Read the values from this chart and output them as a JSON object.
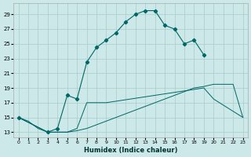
{
  "xlabel": "Humidex (Indice chaleur)",
  "bg_color": "#cce8e8",
  "grid_color": "#aacccc",
  "line_color": "#006666",
  "xlim": [
    -0.5,
    23.5
  ],
  "ylim": [
    12.3,
    30.5
  ],
  "yticks": [
    13,
    15,
    17,
    19,
    21,
    23,
    25,
    27,
    29
  ],
  "xticks": [
    0,
    1,
    2,
    3,
    4,
    5,
    6,
    7,
    8,
    9,
    10,
    11,
    12,
    13,
    14,
    15,
    16,
    17,
    18,
    19,
    20,
    21,
    22,
    23
  ],
  "series_top_x": [
    0,
    3,
    4,
    5,
    6,
    7,
    8,
    9,
    10,
    11,
    12,
    13,
    14,
    15,
    16,
    17,
    18,
    19
  ],
  "series_top_y": [
    15,
    13,
    13.5,
    18,
    17.5,
    22.5,
    24.5,
    25.5,
    26.5,
    28,
    29,
    29.5,
    29.5,
    27.5,
    27,
    25,
    25.5,
    23.5
  ],
  "series_mid_x": [
    0,
    3,
    4,
    5,
    6,
    7,
    8,
    9,
    19,
    20,
    23
  ],
  "series_mid_y": [
    15,
    13,
    13,
    13,
    13.5,
    17,
    17,
    17,
    19,
    17.5,
    15
  ],
  "series_bot_x": [
    0,
    1,
    2,
    3,
    4,
    5,
    6,
    7,
    8,
    9,
    10,
    11,
    12,
    13,
    14,
    15,
    16,
    17,
    18,
    19,
    20,
    21,
    22,
    23
  ],
  "series_bot_y": [
    15,
    14.5,
    13.5,
    13,
    13,
    13,
    13.2,
    13.5,
    14,
    14.5,
    15,
    15.5,
    16,
    16.5,
    17,
    17.5,
    18,
    18.5,
    19,
    19.2,
    19.5,
    19.5,
    19.5,
    15
  ]
}
